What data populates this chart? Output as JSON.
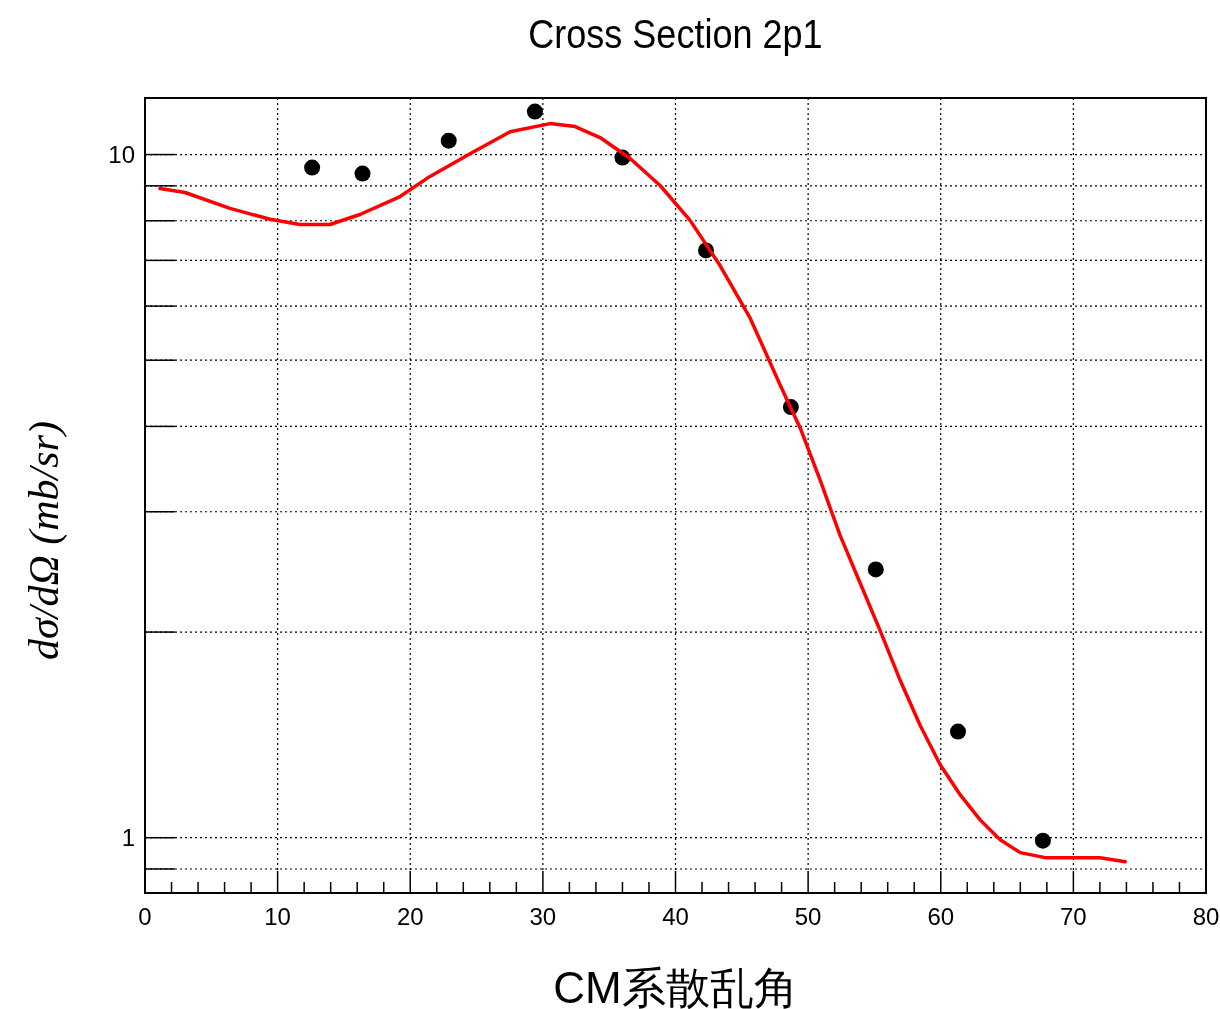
{
  "chart_data": {
    "type": "scatter",
    "title": "Cross Section 2p1",
    "xlabel": "CM系散乱角",
    "ylabel": "dσ/dΩ (mb/sr)",
    "log": "y",
    "grid": true,
    "xlim": [
      0,
      80
    ],
    "xticks": [
      0,
      10,
      20,
      30,
      40,
      50,
      60,
      70,
      80
    ],
    "ylim": [
      0.83,
      12.1
    ],
    "yticks": [
      {
        "value": 0.9,
        "label": null
      },
      1,
      {
        "value": 2,
        "label": null
      },
      {
        "value": 3,
        "label": null
      },
      {
        "value": 4,
        "label": null
      },
      {
        "value": 5,
        "label": null
      },
      {
        "value": 6,
        "label": null
      },
      {
        "value": 7,
        "label": null
      },
      {
        "value": 8,
        "label": null
      },
      {
        "value": 9,
        "label": null
      },
      10
    ],
    "series": [
      {
        "color": "#000000",
        "marker": "circle",
        "x": [
          12.6,
          16.4,
          22.9,
          29.4,
          36.0,
          42.3,
          48.7,
          55.1,
          61.3,
          67.7
        ],
        "values": [
          9.57,
          9.38,
          10.48,
          11.56,
          9.9,
          7.24,
          4.27,
          2.47,
          1.43,
          0.99
        ]
      },
      {
        "type": "line",
        "color": "#ff0000",
        "marker": "none",
        "line_style": "solid",
        "x": [
          1.13,
          3.02,
          6.41,
          9.43,
          11.69,
          13.95,
          16.21,
          19.23,
          21.49,
          24.51,
          27.53,
          30.54,
          32.43,
          34.31,
          36.58,
          38.84,
          41.1,
          43.36,
          45.63,
          47.89,
          49.4,
          50.9,
          52.41,
          53.92,
          55.43,
          56.94,
          58.45,
          59.95,
          61.46,
          62.97,
          64.48,
          65.99,
          67.87,
          69.76,
          72.02,
          73.91
        ],
        "values": [
          8.92,
          8.8,
          8.34,
          8.04,
          7.9,
          7.9,
          8.17,
          8.68,
          9.29,
          10.03,
          10.8,
          11.1,
          10.99,
          10.59,
          9.87,
          9.01,
          8.01,
          6.88,
          5.76,
          4.6,
          3.98,
          3.34,
          2.77,
          2.36,
          2.01,
          1.7,
          1.46,
          1.28,
          1.156,
          1.062,
          0.993,
          0.951,
          0.935,
          0.935,
          0.935,
          0.922
        ]
      }
    ]
  }
}
